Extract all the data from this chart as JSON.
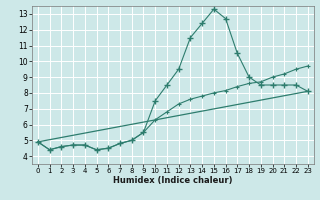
{
  "bg_color": "#cde8e8",
  "grid_color": "#ffffff",
  "line_color": "#2e7d6e",
  "xlabel": "Humidex (Indice chaleur)",
  "xlim": [
    -0.5,
    23.5
  ],
  "ylim": [
    3.5,
    13.5
  ],
  "xticks": [
    0,
    1,
    2,
    3,
    4,
    5,
    6,
    7,
    8,
    9,
    10,
    11,
    12,
    13,
    14,
    15,
    16,
    17,
    18,
    19,
    20,
    21,
    22,
    23
  ],
  "yticks": [
    4,
    5,
    6,
    7,
    8,
    9,
    10,
    11,
    12,
    13
  ],
  "line1_x": [
    0,
    1,
    2,
    3,
    4,
    5,
    6,
    7,
    8,
    9,
    10,
    11,
    12,
    13,
    14,
    15,
    16,
    17,
    18,
    19,
    20,
    21,
    22,
    23
  ],
  "line1_y": [
    4.9,
    4.4,
    4.6,
    4.7,
    4.7,
    4.4,
    4.5,
    4.8,
    5.0,
    5.5,
    7.5,
    8.5,
    9.5,
    11.5,
    12.4,
    13.3,
    12.7,
    10.5,
    9.0,
    8.5,
    8.5,
    8.5,
    8.5,
    8.1
  ],
  "line2_x": [
    0,
    23
  ],
  "line2_y": [
    4.9,
    8.1
  ],
  "line3_x": [
    0,
    1,
    2,
    3,
    4,
    5,
    6,
    7,
    8,
    9,
    10,
    11,
    12,
    13,
    14,
    15,
    16,
    17,
    18,
    19,
    20,
    21,
    22,
    23
  ],
  "line3_y": [
    4.9,
    4.4,
    4.6,
    4.7,
    4.7,
    4.4,
    4.5,
    4.8,
    5.0,
    5.5,
    6.3,
    6.8,
    7.3,
    7.6,
    7.8,
    8.0,
    8.15,
    8.4,
    8.6,
    8.7,
    9.0,
    9.2,
    9.5,
    9.7
  ],
  "figwidth": 3.2,
  "figheight": 2.0,
  "dpi": 100
}
